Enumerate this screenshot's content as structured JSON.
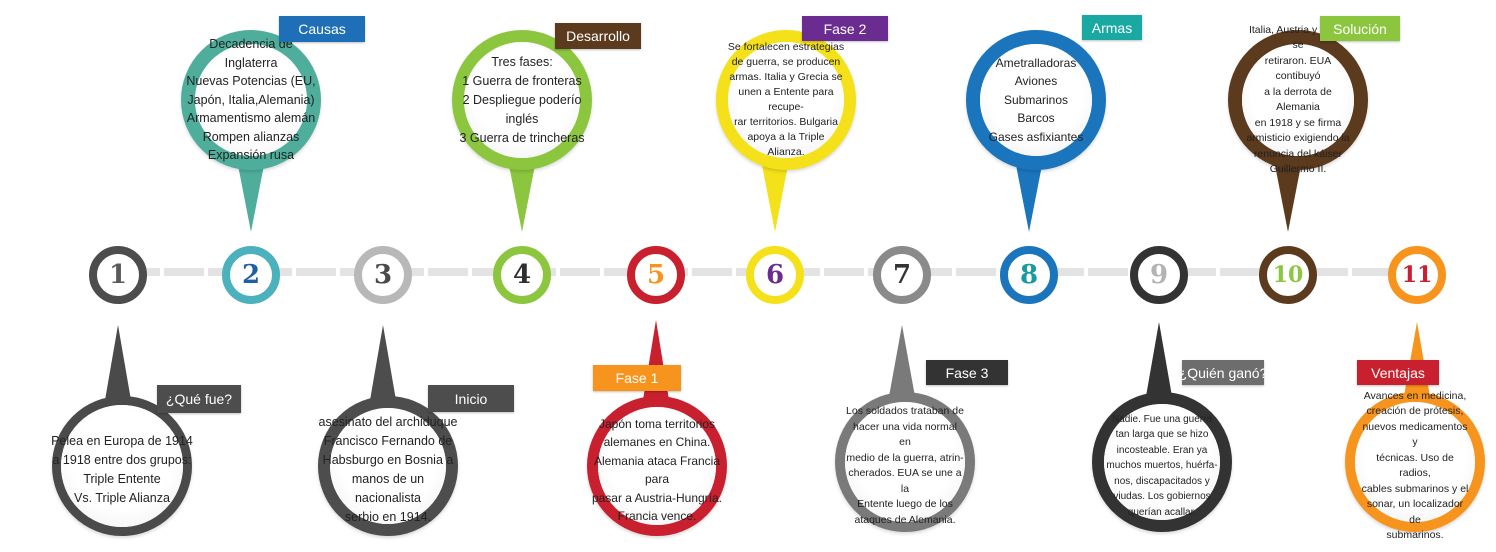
{
  "nodes": [
    {
      "num": "1",
      "ring": "#4d4d4d",
      "digit": "#5a5a5a"
    },
    {
      "num": "2",
      "ring": "#4bb1bd",
      "digit": "#1f5fa8"
    },
    {
      "num": "3",
      "ring": "#b8b8b8",
      "digit": "#4a4a4a"
    },
    {
      "num": "4",
      "ring": "#8cc63f",
      "digit": "#2f2f2f"
    },
    {
      "num": "5",
      "ring": "#c8202f",
      "digit": "#f7941d"
    },
    {
      "num": "6",
      "ring": "#f5e11a",
      "digit": "#6b2c91"
    },
    {
      "num": "7",
      "ring": "#8a8a8a",
      "digit": "#333333"
    },
    {
      "num": "8",
      "ring": "#1b75bc",
      "digit": "#1a9a9f"
    },
    {
      "num": "9",
      "ring": "#333333",
      "digit": "#b3b3b3"
    },
    {
      "num": "10",
      "ring": "#5c3a1e",
      "digit": "#8cc63f"
    },
    {
      "num": "11",
      "ring": "#f7941d",
      "digit": "#c8202f"
    }
  ],
  "bubbles": [
    {
      "node": "1",
      "tag": "¿Qué fue?",
      "tag_color": "#4d4d4d",
      "ring": "#4a4a4a",
      "lines": [
        "Pelea en Europa de 1914",
        "a 1918 entre dos grupos:",
        "Triple Entente",
        "Vs. Triple Alianza"
      ]
    },
    {
      "node": "2",
      "tag": "Causas",
      "tag_color": "#1f6fb8",
      "ring": "#4fae9b",
      "lines": [
        "Decadencia de Inglaterra",
        "Nuevas Potencias (EU,",
        "Japón, Italia,Alemania)",
        "Armamentismo alemán",
        "Rompen alianzas",
        "Expansión rusa"
      ]
    },
    {
      "node": "3",
      "tag": "Inicio",
      "tag_color": "#4d4d4d",
      "ring": "#4d4d4d",
      "lines": [
        "asesinato del archiduque",
        "Francisco Fernando de",
        "Habsburgo en Bosnia a",
        "manos de un nacionalista",
        "serbio en 1914."
      ]
    },
    {
      "node": "4",
      "tag": "Desarrollo",
      "tag_color": "#5c3a1e",
      "ring": "#8cc63f",
      "lines": [
        "Tres fases:",
        "1 Guerra de fronteras",
        "2 Despliegue poderío inglés",
        "3 Guerra de trincheras"
      ]
    },
    {
      "node": "5",
      "tag": "Fase 1",
      "tag_color": "#f7941d",
      "ring": "#c8202f",
      "lines": [
        "Japón toma territorios",
        "alemanes en China.",
        "Alemania ataca Francia para",
        "pasar a Austria-Hungría.",
        "Francia vence."
      ]
    },
    {
      "node": "6",
      "tag": "Fase 2",
      "tag_color": "#6b2c91",
      "ring": "#f5e11a",
      "lines": [
        "Se fortalecen estrategias",
        "de guerra, se producen",
        "armas. Italia y Grecia se",
        "unen a Entente para recupe-",
        "rar territorios. Bulgaria",
        "apoya a la Triple",
        "Alianza."
      ]
    },
    {
      "node": "7",
      "tag": "Fase 3",
      "tag_color": "#333333",
      "ring": "#7a7a7a",
      "lines": [
        "Los soldados trataban de",
        "hacer una vida normal en",
        "medio de la guerra, atrin-",
        "cherados. EUA se une a la",
        "Entente luego de los",
        "ataques de Alemania."
      ]
    },
    {
      "node": "8",
      "tag": "Armas",
      "tag_color": "#1aa9a2",
      "ring": "#1b75bc",
      "lines": [
        "Ametralladoras",
        "Aviones",
        "Submarinos",
        "Barcos",
        "Gases asfixiantes"
      ]
    },
    {
      "node": "9",
      "tag": "¿Quién ganó?",
      "tag_color": "#6d6d6d",
      "ring": "#333333",
      "lines": [
        "Nadie. Fue una guerra",
        "tan larga que se hizo",
        "incosteable. Eran ya",
        "muchos muertos, huérfa-",
        "nos, discapacitados y",
        "viudas. Los gobiernos",
        "querían acallar."
      ]
    },
    {
      "node": "10",
      "tag": "Solución",
      "tag_color": "#8cc63f",
      "ring": "#5c3a1e",
      "lines": [
        "Italia, Austria y Rusia se",
        "retiraron. EUA contibuyó",
        "a la derrota de Alemania",
        "en 1918 y se firma",
        "armisticio exigiendo la",
        "renuncia del káiser",
        "Guillermo II."
      ]
    },
    {
      "node": "11",
      "tag": "Ventajas",
      "tag_color": "#c8202f",
      "ring": "#f7941d",
      "lines": [
        "Avances en medicina,",
        "creación de prótesis,",
        "nuevos medicamentos y",
        "técnicas. Uso de radios,",
        "cables submarinos y el",
        "sonar, un localizador de",
        "submarinos."
      ]
    }
  ]
}
